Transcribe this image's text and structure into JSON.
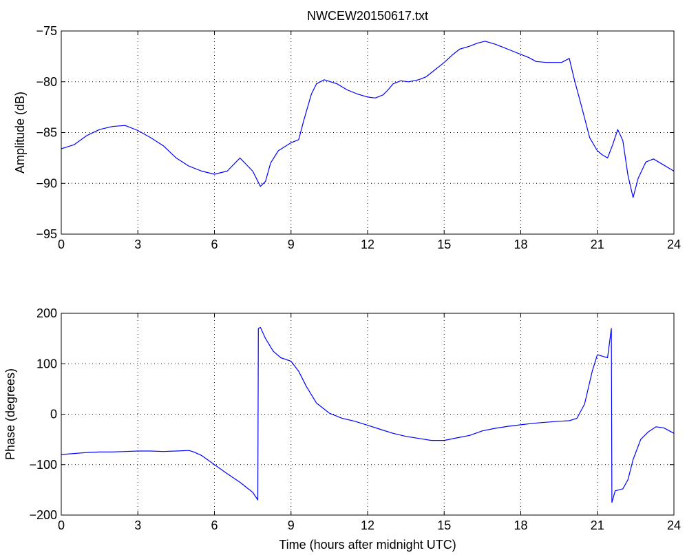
{
  "chart_data": [
    {
      "type": "line",
      "title": "NWCEW20150617.txt",
      "xlabel": "",
      "ylabel": "Amplitude (dB)",
      "xlim": [
        0,
        24
      ],
      "ylim": [
        -95,
        -75
      ],
      "xticks": [
        "0",
        "3",
        "6",
        "9",
        "12",
        "15",
        "18",
        "21",
        "24"
      ],
      "yticks": [
        "−95",
        "−90",
        "−85",
        "−80",
        "−75"
      ],
      "grid": true,
      "color": "#0000ff",
      "series": [
        {
          "x": [
            0,
            0.5,
            1,
            1.5,
            2,
            2.5,
            3,
            3.5,
            4,
            4.5,
            5,
            5.5,
            6,
            6.5,
            7,
            7.5,
            7.8,
            8,
            8.2,
            8.5,
            9,
            9.3,
            9.5,
            9.8,
            10,
            10.3,
            10.8,
            11.2,
            11.6,
            12,
            12.3,
            12.6,
            12.8,
            13,
            13.3,
            13.6,
            14,
            14.3,
            14.6,
            15,
            15.3,
            15.6,
            16,
            16.3,
            16.6,
            17,
            17.3,
            17.6,
            18,
            18.3,
            18.6,
            19,
            19.3,
            19.6,
            19.9,
            20.1,
            20.4,
            20.7,
            21,
            21.2,
            21.4,
            21.6,
            21.8,
            22,
            22.2,
            22.4,
            22.6,
            22.9,
            23.2,
            23.6,
            24
          ],
          "y": [
            -86.6,
            -86.2,
            -85.3,
            -84.7,
            -84.4,
            -84.3,
            -84.8,
            -85.5,
            -86.3,
            -87.5,
            -88.3,
            -88.8,
            -89.1,
            -88.8,
            -87.5,
            -88.8,
            -90.3,
            -89.8,
            -88.0,
            -86.8,
            -86.0,
            -85.7,
            -83.8,
            -81.2,
            -80.2,
            -79.8,
            -80.2,
            -80.8,
            -81.2,
            -81.5,
            -81.6,
            -81.3,
            -80.8,
            -80.2,
            -79.9,
            -80.0,
            -79.8,
            -79.5,
            -78.9,
            -78.1,
            -77.4,
            -76.8,
            -76.5,
            -76.2,
            -76.0,
            -76.3,
            -76.6,
            -76.9,
            -77.3,
            -77.6,
            -78.0,
            -78.1,
            -78.1,
            -78.1,
            -77.7,
            -79.8,
            -82.6,
            -85.5,
            -86.8,
            -87.2,
            -87.5,
            -86.2,
            -84.7,
            -85.8,
            -89.2,
            -91.4,
            -89.5,
            -87.9,
            -87.6,
            -88.2,
            -88.8
          ]
        }
      ]
    },
    {
      "type": "line",
      "title": "",
      "xlabel": "Time (hours after midnight UTC)",
      "ylabel": "Phase (degrees)",
      "xlim": [
        0,
        24
      ],
      "ylim": [
        -200,
        200
      ],
      "xticks": [
        "0",
        "3",
        "6",
        "9",
        "12",
        "15",
        "18",
        "21",
        "24"
      ],
      "yticks": [
        "−200",
        "−100",
        "0",
        "100",
        "200"
      ],
      "grid": true,
      "color": "#0000ff",
      "series": [
        {
          "x": [
            0,
            0.5,
            1,
            1.5,
            2,
            2.5,
            3,
            3.5,
            4,
            4.5,
            5,
            5.2,
            5.5,
            6,
            6.5,
            7,
            7.5,
            7.7,
            7.72,
            7.8,
            8,
            8.3,
            8.6,
            9,
            9.3,
            9.6,
            10,
            10.5,
            11,
            11.5,
            12,
            12.5,
            13,
            13.5,
            14,
            14.5,
            15,
            15.5,
            16,
            16.5,
            17,
            17.5,
            18,
            18.5,
            19,
            19.5,
            19.9,
            20.2,
            20.5,
            20.8,
            21,
            21.2,
            21.4,
            21.55,
            21.57,
            21.7,
            22,
            22.2,
            22.4,
            22.7,
            23,
            23.3,
            23.6,
            24
          ],
          "y": [
            -80,
            -78,
            -76,
            -75,
            -75,
            -74,
            -73,
            -73,
            -74,
            -73,
            -72,
            -75,
            -82,
            -100,
            -118,
            -135,
            -155,
            -170,
            170,
            172,
            150,
            125,
            112,
            105,
            85,
            55,
            22,
            2,
            -8,
            -14,
            -22,
            -30,
            -38,
            -44,
            -48,
            -52,
            -52,
            -47,
            -42,
            -33,
            -28,
            -24,
            -21,
            -18,
            -16,
            -14,
            -13,
            -8,
            20,
            85,
            118,
            115,
            112,
            170,
            -175,
            -152,
            -148,
            -130,
            -90,
            -50,
            -35,
            -25,
            -27,
            -38
          ]
        }
      ]
    }
  ]
}
